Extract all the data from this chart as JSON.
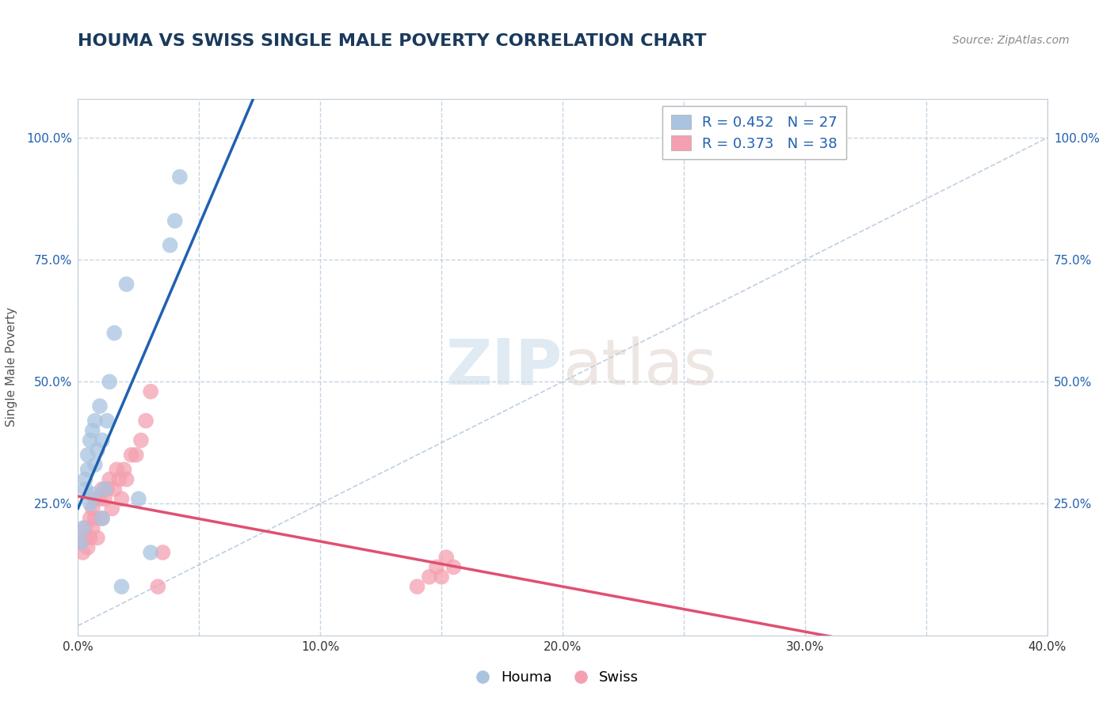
{
  "title": "HOUMA VS SWISS SINGLE MALE POVERTY CORRELATION CHART",
  "source": "Source: ZipAtlas.com",
  "ylabel": "Single Male Poverty",
  "xlim": [
    0.0,
    0.4
  ],
  "ylim": [
    -0.02,
    1.08
  ],
  "xtick_labels": [
    "0.0%",
    "",
    "10.0%",
    "",
    "20.0%",
    "",
    "30.0%",
    "",
    "40.0%"
  ],
  "xtick_values": [
    0.0,
    0.05,
    0.1,
    0.15,
    0.2,
    0.25,
    0.3,
    0.35,
    0.4
  ],
  "ytick_labels": [
    "25.0%",
    "50.0%",
    "75.0%",
    "100.0%"
  ],
  "ytick_values": [
    0.25,
    0.5,
    0.75,
    1.0
  ],
  "houma_color": "#a8c4e0",
  "swiss_color": "#f4a0b0",
  "houma_line_color": "#2060b0",
  "swiss_line_color": "#e05070",
  "diagonal_color": "#b0c4d8",
  "houma_R": 0.452,
  "houma_N": 27,
  "swiss_R": 0.373,
  "swiss_N": 38,
  "houma_x": [
    0.001,
    0.002,
    0.003,
    0.003,
    0.004,
    0.004,
    0.005,
    0.005,
    0.006,
    0.006,
    0.007,
    0.007,
    0.008,
    0.009,
    0.01,
    0.01,
    0.011,
    0.012,
    0.013,
    0.015,
    0.018,
    0.02,
    0.025,
    0.03,
    0.038,
    0.04,
    0.042
  ],
  "houma_y": [
    0.17,
    0.2,
    0.28,
    0.3,
    0.32,
    0.35,
    0.25,
    0.38,
    0.27,
    0.4,
    0.33,
    0.42,
    0.36,
    0.45,
    0.22,
    0.38,
    0.28,
    0.42,
    0.5,
    0.6,
    0.08,
    0.7,
    0.26,
    0.15,
    0.78,
    0.83,
    0.92
  ],
  "swiss_x": [
    0.001,
    0.002,
    0.003,
    0.003,
    0.004,
    0.005,
    0.005,
    0.006,
    0.006,
    0.007,
    0.007,
    0.008,
    0.009,
    0.01,
    0.01,
    0.011,
    0.012,
    0.013,
    0.014,
    0.015,
    0.016,
    0.017,
    0.018,
    0.019,
    0.02,
    0.022,
    0.024,
    0.026,
    0.028,
    0.03,
    0.033,
    0.035,
    0.14,
    0.145,
    0.148,
    0.15,
    0.152,
    0.155
  ],
  "swiss_y": [
    0.17,
    0.15,
    0.18,
    0.2,
    0.16,
    0.22,
    0.18,
    0.2,
    0.24,
    0.22,
    0.26,
    0.18,
    0.26,
    0.22,
    0.28,
    0.26,
    0.28,
    0.3,
    0.24,
    0.28,
    0.32,
    0.3,
    0.26,
    0.32,
    0.3,
    0.35,
    0.35,
    0.38,
    0.42,
    0.48,
    0.08,
    0.15,
    0.08,
    0.1,
    0.12,
    0.1,
    0.14,
    0.12
  ],
  "background_color": "#ffffff",
  "plot_bg_color": "#ffffff",
  "grid_color": "#c0d0e0",
  "title_color": "#1a3a5c",
  "source_color": "#888888"
}
